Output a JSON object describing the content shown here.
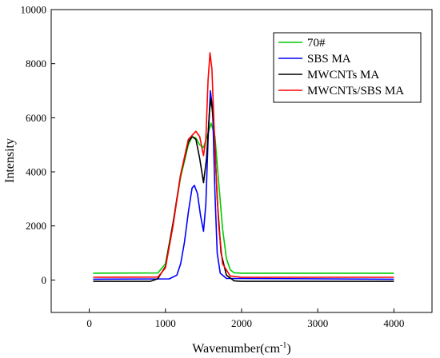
{
  "chart_data": {
    "type": "line",
    "xlabel": "Wavenumber(cm",
    "xlabel_sup": "-1",
    "xlabel_close": ")",
    "ylabel": "Intensity",
    "xlim": [
      -500,
      4500
    ],
    "ylim": [
      -1200,
      10000
    ],
    "xticks": [
      "0",
      "1000",
      "2000",
      "3000",
      "4000"
    ],
    "xtick_values": [
      0,
      1000,
      2000,
      3000,
      4000
    ],
    "yticks": [
      "0",
      "2000",
      "4000",
      "6000",
      "8000",
      "10000"
    ],
    "ytick_values": [
      0,
      2000,
      4000,
      6000,
      8000,
      10000
    ],
    "grid": false,
    "legend_position": "top-right",
    "series": [
      {
        "name": "70#",
        "color": "#00cc00",
        "points": [
          [
            50,
            250
          ],
          [
            900,
            260
          ],
          [
            1000,
            600
          ],
          [
            1100,
            2100
          ],
          [
            1200,
            3800
          ],
          [
            1300,
            5000
          ],
          [
            1350,
            5300
          ],
          [
            1400,
            5250
          ],
          [
            1450,
            5000
          ],
          [
            1500,
            4900
          ],
          [
            1550,
            5350
          ],
          [
            1600,
            5800
          ],
          [
            1650,
            5300
          ],
          [
            1700,
            3600
          ],
          [
            1750,
            1900
          ],
          [
            1800,
            800
          ],
          [
            1850,
            380
          ],
          [
            1900,
            270
          ],
          [
            2000,
            250
          ],
          [
            4000,
            250
          ]
        ]
      },
      {
        "name": "SBS MA",
        "color": "#0000ff",
        "points": [
          [
            50,
            30
          ],
          [
            1050,
            40
          ],
          [
            1150,
            180
          ],
          [
            1200,
            600
          ],
          [
            1250,
            1400
          ],
          [
            1300,
            2500
          ],
          [
            1350,
            3400
          ],
          [
            1380,
            3500
          ],
          [
            1420,
            3200
          ],
          [
            1460,
            2400
          ],
          [
            1500,
            1800
          ],
          [
            1530,
            2800
          ],
          [
            1560,
            5200
          ],
          [
            1590,
            7000
          ],
          [
            1620,
            6300
          ],
          [
            1650,
            3200
          ],
          [
            1680,
            1000
          ],
          [
            1720,
            250
          ],
          [
            1800,
            60
          ],
          [
            4000,
            30
          ]
        ]
      },
      {
        "name": "MWCNTs MA",
        "color": "#000000",
        "points": [
          [
            50,
            -50
          ],
          [
            800,
            -50
          ],
          [
            900,
            50
          ],
          [
            1000,
            500
          ],
          [
            1100,
            2100
          ],
          [
            1200,
            3900
          ],
          [
            1300,
            5100
          ],
          [
            1350,
            5300
          ],
          [
            1400,
            5200
          ],
          [
            1450,
            4500
          ],
          [
            1500,
            3600
          ],
          [
            1540,
            4500
          ],
          [
            1580,
            6300
          ],
          [
            1600,
            6700
          ],
          [
            1640,
            5600
          ],
          [
            1680,
            3000
          ],
          [
            1730,
            1000
          ],
          [
            1800,
            180
          ],
          [
            1900,
            -30
          ],
          [
            2000,
            -50
          ],
          [
            4000,
            -50
          ]
        ]
      },
      {
        "name": "MWCNTs/SBS MA",
        "color": "#ff0000",
        "points": [
          [
            50,
            100
          ],
          [
            900,
            110
          ],
          [
            1000,
            450
          ],
          [
            1100,
            2000
          ],
          [
            1200,
            3900
          ],
          [
            1300,
            5200
          ],
          [
            1400,
            5500
          ],
          [
            1450,
            5300
          ],
          [
            1500,
            4600
          ],
          [
            1530,
            5200
          ],
          [
            1560,
            7400
          ],
          [
            1585,
            8400
          ],
          [
            1610,
            7800
          ],
          [
            1650,
            4800
          ],
          [
            1700,
            2000
          ],
          [
            1750,
            600
          ],
          [
            1850,
            150
          ],
          [
            2000,
            100
          ],
          [
            4000,
            100
          ]
        ]
      }
    ]
  }
}
